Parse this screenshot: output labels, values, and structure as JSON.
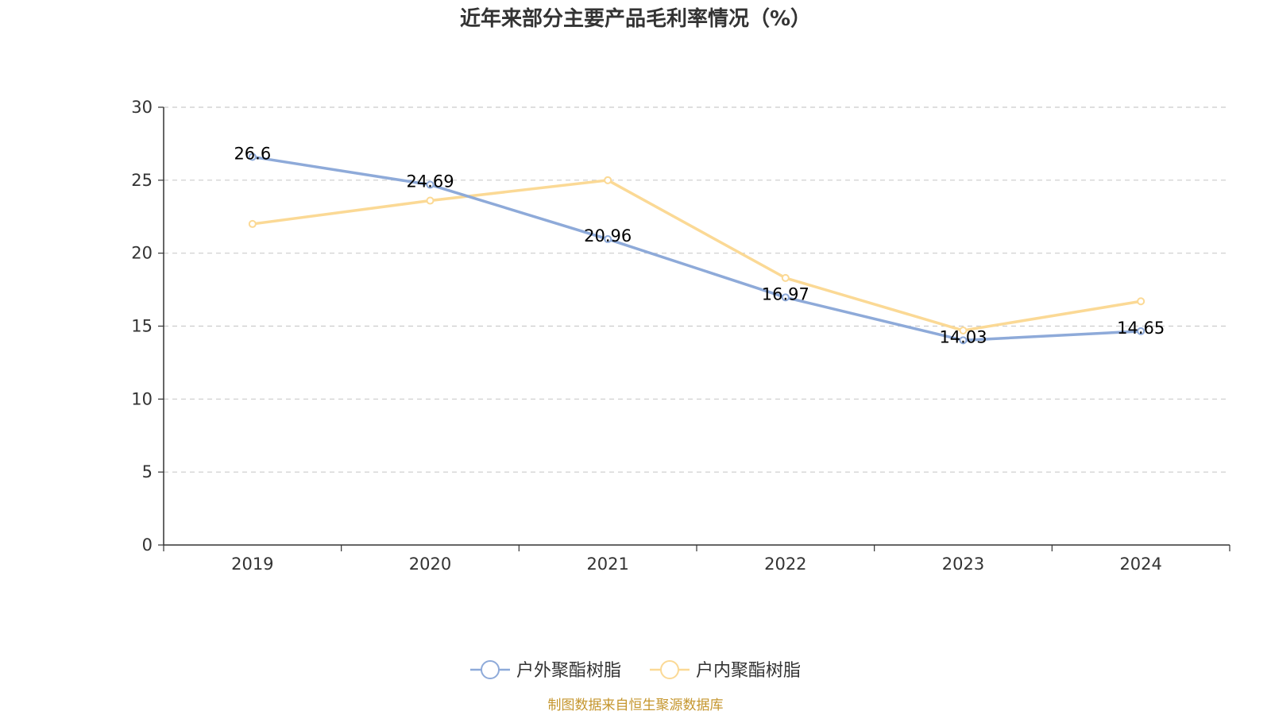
{
  "chart_data": {
    "type": "line",
    "title": "近年来部分主要产品毛利率情况（%）",
    "categories": [
      "2019",
      "2020",
      "2021",
      "2022",
      "2023",
      "2024"
    ],
    "ylim": [
      0,
      30
    ],
    "yticks": [
      "0",
      "5",
      "10",
      "15",
      "20",
      "25",
      "30"
    ],
    "grid": true,
    "legend_position": "bottom",
    "series": [
      {
        "name": "户外聚酯树脂",
        "color": "#8eaad9",
        "values": [
          26.6,
          24.69,
          20.96,
          16.97,
          14.03,
          14.65
        ],
        "labels": [
          "26.6",
          "24.69",
          "20.96",
          "16.97",
          "14.03",
          "14.65"
        ]
      },
      {
        "name": "户内聚酯树脂",
        "color": "#fbd995",
        "values": [
          22.0,
          23.6,
          25.0,
          18.3,
          14.7,
          16.7
        ]
      }
    ],
    "source": "制图数据来自恒生聚源数据库"
  }
}
